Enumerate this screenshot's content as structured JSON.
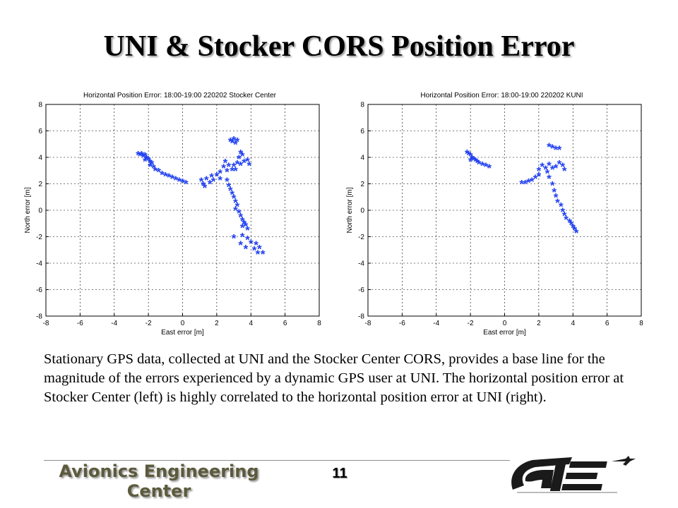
{
  "slide": {
    "title": "UNI & Stocker CORS Position Error",
    "caption": "Stationary GPS data, collected at UNI and the Stocker Center CORS, provides a base line for the magnitude of the errors experienced by a dynamic GPS user at UNI. The horizontal position error at Stocker Center (left) is highly correlated to the horizontal position error at UNI (right).",
    "page_number": "11",
    "footer_org": "Avionics Engineering Center",
    "logo_text": "AE"
  },
  "chart_data": [
    {
      "type": "scatter",
      "title": "Horizontal Position Error: 18:00-19:00 220202 Stocker Center",
      "xlabel": "East error [m]",
      "ylabel": "North error [m]",
      "xlim": [
        -8,
        8
      ],
      "ylim": [
        -8,
        8
      ],
      "xticks": [
        -8,
        -6,
        -4,
        -2,
        0,
        2,
        4,
        6,
        8
      ],
      "yticks": [
        -8,
        -6,
        -4,
        -2,
        0,
        2,
        4,
        6,
        8
      ],
      "grid": true,
      "marker": "*",
      "color": "#1f3ff0",
      "points": [
        [
          -2.6,
          4.2
        ],
        [
          -2.5,
          4.1
        ],
        [
          -2.4,
          4.2
        ],
        [
          -2.3,
          4.0
        ],
        [
          -2.2,
          4.1
        ],
        [
          -2.1,
          3.9
        ],
        [
          -2.0,
          3.8
        ],
        [
          -2.2,
          3.7
        ],
        [
          -1.9,
          3.6
        ],
        [
          -1.8,
          3.5
        ],
        [
          -1.9,
          3.3
        ],
        [
          -1.7,
          3.2
        ],
        [
          -1.6,
          3.0
        ],
        [
          -1.4,
          2.9
        ],
        [
          -1.2,
          2.7
        ],
        [
          -1.0,
          2.6
        ],
        [
          -0.8,
          2.5
        ],
        [
          -0.6,
          2.4
        ],
        [
          -0.4,
          2.3
        ],
        [
          -0.2,
          2.2
        ],
        [
          0.0,
          2.1
        ],
        [
          0.2,
          2.0
        ],
        [
          1.1,
          2.2
        ],
        [
          1.2,
          1.9
        ],
        [
          1.3,
          1.7
        ],
        [
          1.4,
          2.3
        ],
        [
          1.6,
          2.0
        ],
        [
          1.7,
          2.5
        ],
        [
          1.8,
          2.2
        ],
        [
          2.0,
          2.6
        ],
        [
          2.2,
          2.8
        ],
        [
          2.2,
          2.3
        ],
        [
          2.4,
          3.2
        ],
        [
          2.5,
          3.6
        ],
        [
          2.6,
          2.9
        ],
        [
          2.7,
          3.3
        ],
        [
          2.9,
          3.0
        ],
        [
          3.0,
          3.3
        ],
        [
          3.1,
          3.0
        ],
        [
          3.2,
          3.5
        ],
        [
          3.4,
          3.4
        ],
        [
          3.6,
          3.6
        ],
        [
          3.8,
          3.7
        ],
        [
          3.9,
          3.4
        ],
        [
          2.8,
          5.2
        ],
        [
          3.0,
          5.3
        ],
        [
          3.2,
          5.2
        ],
        [
          2.9,
          5.1
        ],
        [
          3.1,
          5.0
        ],
        [
          3.4,
          4.3
        ],
        [
          3.5,
          4.1
        ],
        [
          3.3,
          3.9
        ],
        [
          2.6,
          2.2
        ],
        [
          2.7,
          1.8
        ],
        [
          2.8,
          1.5
        ],
        [
          2.9,
          1.2
        ],
        [
          3.0,
          0.9
        ],
        [
          3.1,
          0.6
        ],
        [
          3.2,
          0.3
        ],
        [
          3.1,
          0.0
        ],
        [
          3.3,
          -0.2
        ],
        [
          3.4,
          -0.5
        ],
        [
          3.5,
          -0.8
        ],
        [
          3.6,
          -1.0
        ],
        [
          3.7,
          -1.2
        ],
        [
          3.8,
          -1.5
        ],
        [
          3.5,
          -1.3
        ],
        [
          3.0,
          -2.1
        ],
        [
          3.5,
          -2.0
        ],
        [
          3.8,
          -2.2
        ],
        [
          3.4,
          -2.6
        ],
        [
          4.0,
          -2.5
        ],
        [
          4.3,
          -2.6
        ],
        [
          3.7,
          -2.9
        ],
        [
          4.2,
          -3.0
        ],
        [
          4.5,
          -2.9
        ],
        [
          4.4,
          -3.3
        ],
        [
          4.7,
          -3.3
        ]
      ]
    },
    {
      "type": "scatter",
      "title": "Horizontal Position Error: 18:00-19:00 220202 KUNI",
      "xlabel": "East error [m]",
      "ylabel": "North error [m]",
      "xlim": [
        -8,
        8
      ],
      "ylim": [
        -8,
        8
      ],
      "xticks": [
        -8,
        -6,
        -4,
        -2,
        0,
        2,
        4,
        6,
        8
      ],
      "yticks": [
        -8,
        -6,
        -4,
        -2,
        0,
        2,
        4,
        6,
        8
      ],
      "grid": true,
      "marker": "*",
      "color": "#1f3ff0",
      "points": [
        [
          -2.2,
          4.3
        ],
        [
          -2.1,
          4.2
        ],
        [
          -2.0,
          4.1
        ],
        [
          -1.9,
          3.9
        ],
        [
          -2.0,
          3.7
        ],
        [
          -1.8,
          3.8
        ],
        [
          -1.7,
          3.7
        ],
        [
          -1.6,
          3.6
        ],
        [
          -1.5,
          3.5
        ],
        [
          -1.3,
          3.4
        ],
        [
          -1.1,
          3.3
        ],
        [
          -0.9,
          3.2
        ],
        [
          2.6,
          4.8
        ],
        [
          2.8,
          4.7
        ],
        [
          3.0,
          4.6
        ],
        [
          3.2,
          4.6
        ],
        [
          1.0,
          2.0
        ],
        [
          1.2,
          2.0
        ],
        [
          1.4,
          2.1
        ],
        [
          1.6,
          2.2
        ],
        [
          1.8,
          2.4
        ],
        [
          2.0,
          2.6
        ],
        [
          2.0,
          3.0
        ],
        [
          2.2,
          3.3
        ],
        [
          2.4,
          3.1
        ],
        [
          2.5,
          2.8
        ],
        [
          2.6,
          3.4
        ],
        [
          2.8,
          3.1
        ],
        [
          3.0,
          3.2
        ],
        [
          3.2,
          3.5
        ],
        [
          3.4,
          3.3
        ],
        [
          3.5,
          3.0
        ],
        [
          2.6,
          2.4
        ],
        [
          2.8,
          1.9
        ],
        [
          2.9,
          1.4
        ],
        [
          3.0,
          1.0
        ],
        [
          3.1,
          0.6
        ],
        [
          3.3,
          0.3
        ],
        [
          3.4,
          -0.1
        ],
        [
          3.5,
          -0.4
        ],
        [
          3.6,
          -0.7
        ],
        [
          3.8,
          -0.9
        ],
        [
          3.9,
          -1.1
        ],
        [
          4.0,
          -1.3
        ],
        [
          4.1,
          -1.5
        ],
        [
          4.2,
          -1.7
        ]
      ]
    }
  ]
}
